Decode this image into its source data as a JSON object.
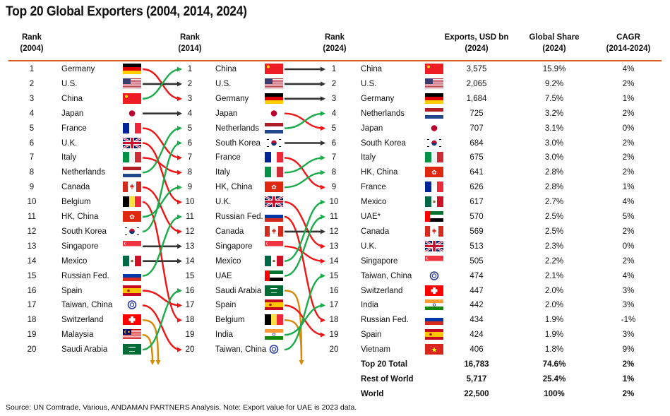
{
  "title": "Top 20 Global Exporters (2004, 2014, 2024)",
  "headers": {
    "rank2004": [
      "Rank",
      "(2004)"
    ],
    "rank2014": [
      "Rank",
      "(2014)"
    ],
    "rank2024": [
      "Rank",
      "(2024)"
    ],
    "exports": [
      "Exports, USD bn",
      "(2024)"
    ],
    "share": [
      "Global Share",
      "(2024)"
    ],
    "cagr": [
      "CAGR",
      "(2014-2024)"
    ]
  },
  "colors": {
    "accent_rule": "#d9601a",
    "up": "#1aab4a",
    "down": "#f01414",
    "same": "#333333",
    "exit": "#d68a0a"
  },
  "chart_data": {
    "type": "table",
    "title": "Top 20 Global Exporters (2004, 2014, 2024)",
    "ranks": [
      "1",
      "2",
      "3",
      "4",
      "5",
      "6",
      "7",
      "8",
      "9",
      "10",
      "11",
      "12",
      "13",
      "14",
      "15",
      "16",
      "17",
      "18",
      "19",
      "20"
    ],
    "rank_2004": [
      {
        "name": "Germany",
        "flag": "de"
      },
      {
        "name": "U.S.",
        "flag": "us"
      },
      {
        "name": "China",
        "flag": "cn"
      },
      {
        "name": "Japan",
        "flag": "jp"
      },
      {
        "name": "France",
        "flag": "fr"
      },
      {
        "name": "U.K.",
        "flag": "gb"
      },
      {
        "name": "Italy",
        "flag": "it"
      },
      {
        "name": "Netherlands",
        "flag": "nl"
      },
      {
        "name": "Canada",
        "flag": "ca"
      },
      {
        "name": "Belgium",
        "flag": "be"
      },
      {
        "name": "HK, China",
        "flag": "hk"
      },
      {
        "name": "South Korea",
        "flag": "kr"
      },
      {
        "name": "Singapore",
        "flag": "sg"
      },
      {
        "name": "Mexico",
        "flag": "mx"
      },
      {
        "name": "Russian Fed.",
        "flag": "ru"
      },
      {
        "name": "Spain",
        "flag": "es"
      },
      {
        "name": "Taiwan, China",
        "flag": "tw"
      },
      {
        "name": "Switzerland",
        "flag": "ch"
      },
      {
        "name": "Malaysia",
        "flag": "my"
      },
      {
        "name": "Saudi Arabia",
        "flag": "sa"
      }
    ],
    "rank_2014": [
      {
        "name": "China",
        "flag": "cn"
      },
      {
        "name": "U.S.",
        "flag": "us"
      },
      {
        "name": "Germany",
        "flag": "de"
      },
      {
        "name": "Japan",
        "flag": "jp"
      },
      {
        "name": "Netherlands",
        "flag": "nl"
      },
      {
        "name": "South Korea",
        "flag": "kr"
      },
      {
        "name": "France",
        "flag": "fr"
      },
      {
        "name": "Italy",
        "flag": "it"
      },
      {
        "name": "HK, China",
        "flag": "hk"
      },
      {
        "name": "U.K.",
        "flag": "gb"
      },
      {
        "name": "Russian Fed.",
        "flag": "ru"
      },
      {
        "name": "Canada",
        "flag": "ca"
      },
      {
        "name": "Singapore",
        "flag": "sg"
      },
      {
        "name": "Mexico",
        "flag": "mx"
      },
      {
        "name": "UAE",
        "flag": "ae"
      },
      {
        "name": "Saudi Arabia",
        "flag": "sa"
      },
      {
        "name": "Spain",
        "flag": "es"
      },
      {
        "name": "Belgium",
        "flag": "be"
      },
      {
        "name": "India",
        "flag": "in"
      },
      {
        "name": "Taiwan, China",
        "flag": "tw"
      }
    ],
    "rank_2024": [
      {
        "name": "China",
        "flag": "cn",
        "exports": "3,575",
        "share": "15.9%",
        "cagr": "4%"
      },
      {
        "name": "U.S.",
        "flag": "us",
        "exports": "2,065",
        "share": "9.2%",
        "cagr": "2%"
      },
      {
        "name": "Germany",
        "flag": "de",
        "exports": "1,684",
        "share": "7.5%",
        "cagr": "1%"
      },
      {
        "name": "Netherlands",
        "flag": "nl",
        "exports": "725",
        "share": "3.2%",
        "cagr": "2%"
      },
      {
        "name": "Japan",
        "flag": "jp",
        "exports": "707",
        "share": "3.1%",
        "cagr": "0%"
      },
      {
        "name": "South Korea",
        "flag": "kr",
        "exports": "684",
        "share": "3.0%",
        "cagr": "2%"
      },
      {
        "name": "Italy",
        "flag": "it",
        "exports": "675",
        "share": "3.0%",
        "cagr": "2%"
      },
      {
        "name": "HK, China",
        "flag": "hk",
        "exports": "641",
        "share": "2.8%",
        "cagr": "2%"
      },
      {
        "name": "France",
        "flag": "fr",
        "exports": "626",
        "share": "2.8%",
        "cagr": "1%"
      },
      {
        "name": "Mexico",
        "flag": "mx",
        "exports": "617",
        "share": "2.7%",
        "cagr": "4%"
      },
      {
        "name": "UAE*",
        "flag": "ae",
        "exports": "570",
        "share": "2.5%",
        "cagr": "5%"
      },
      {
        "name": "Canada",
        "flag": "ca",
        "exports": "569",
        "share": "2.5%",
        "cagr": "2%"
      },
      {
        "name": "U.K.",
        "flag": "gb",
        "exports": "513",
        "share": "2.3%",
        "cagr": "0%"
      },
      {
        "name": "Singapore",
        "flag": "sg",
        "exports": "505",
        "share": "2.2%",
        "cagr": "2%"
      },
      {
        "name": "Taiwan, China",
        "flag": "tw",
        "exports": "474",
        "share": "2.1%",
        "cagr": "4%"
      },
      {
        "name": "Switzerland",
        "flag": "ch",
        "exports": "447",
        "share": "2.0%",
        "cagr": "3%"
      },
      {
        "name": "India",
        "flag": "in",
        "exports": "442",
        "share": "2.0%",
        "cagr": "3%"
      },
      {
        "name": "Russian Fed.",
        "flag": "ru",
        "exports": "434",
        "share": "1.9%",
        "cagr": "-1%"
      },
      {
        "name": "Spain",
        "flag": "es",
        "exports": "424",
        "share": "1.9%",
        "cagr": "3%"
      },
      {
        "name": "Vietnam",
        "flag": "vn",
        "exports": "406",
        "share": "1.8%",
        "cagr": "9%"
      }
    ],
    "totals": [
      {
        "label": "Top 20 Total",
        "exports": "16,783",
        "share": "74.6%",
        "cagr": "2%"
      },
      {
        "label": "Rest of World",
        "exports": "5,717",
        "share": "25.4%",
        "cagr": "1%"
      },
      {
        "label": "World",
        "exports": "22,500",
        "share": "100%",
        "cagr": "2%"
      }
    ],
    "flows_2004_to_2014": [
      {
        "from": 1,
        "to": 3,
        "dir": "down"
      },
      {
        "from": 2,
        "to": 2,
        "dir": "same"
      },
      {
        "from": 3,
        "to": 1,
        "dir": "up"
      },
      {
        "from": 4,
        "to": 4,
        "dir": "same"
      },
      {
        "from": 5,
        "to": 7,
        "dir": "down"
      },
      {
        "from": 6,
        "to": 10,
        "dir": "down"
      },
      {
        "from": 7,
        "to": 8,
        "dir": "down"
      },
      {
        "from": 8,
        "to": 5,
        "dir": "up"
      },
      {
        "from": 9,
        "to": 12,
        "dir": "down"
      },
      {
        "from": 10,
        "to": 18,
        "dir": "down"
      },
      {
        "from": 11,
        "to": 9,
        "dir": "up"
      },
      {
        "from": 12,
        "to": 6,
        "dir": "up"
      },
      {
        "from": 13,
        "to": 13,
        "dir": "same"
      },
      {
        "from": 14,
        "to": 14,
        "dir": "same"
      },
      {
        "from": 15,
        "to": 11,
        "dir": "up"
      },
      {
        "from": 16,
        "to": 17,
        "dir": "down"
      },
      {
        "from": 17,
        "to": 20,
        "dir": "down"
      },
      {
        "from": 18,
        "to": null,
        "dir": "exit"
      },
      {
        "from": 19,
        "to": null,
        "dir": "exit"
      },
      {
        "from": 20,
        "to": 16,
        "dir": "up"
      }
    ],
    "flows_2014_to_2024": [
      {
        "from": 1,
        "to": 1,
        "dir": "same"
      },
      {
        "from": 2,
        "to": 2,
        "dir": "same"
      },
      {
        "from": 3,
        "to": 3,
        "dir": "same"
      },
      {
        "from": 4,
        "to": 5,
        "dir": "down"
      },
      {
        "from": 5,
        "to": 4,
        "dir": "up"
      },
      {
        "from": 6,
        "to": 6,
        "dir": "same"
      },
      {
        "from": 7,
        "to": 9,
        "dir": "down"
      },
      {
        "from": 8,
        "to": 7,
        "dir": "up"
      },
      {
        "from": 9,
        "to": 8,
        "dir": "up"
      },
      {
        "from": 10,
        "to": 13,
        "dir": "down"
      },
      {
        "from": 11,
        "to": 18,
        "dir": "down"
      },
      {
        "from": 12,
        "to": 12,
        "dir": "same"
      },
      {
        "from": 13,
        "to": 14,
        "dir": "down"
      },
      {
        "from": 14,
        "to": 10,
        "dir": "up"
      },
      {
        "from": 15,
        "to": 11,
        "dir": "up"
      },
      {
        "from": 16,
        "to": null,
        "dir": "exit"
      },
      {
        "from": 17,
        "to": 19,
        "dir": "down"
      },
      {
        "from": 18,
        "to": null,
        "dir": "exit"
      },
      {
        "from": 19,
        "to": 17,
        "dir": "up"
      },
      {
        "from": 20,
        "to": 15,
        "dir": "up"
      }
    ]
  },
  "source": "Source: UN Comtrade, Various, ANDAMAN PARTNERS Analysis. Note: Export value for UAE is 2023 data."
}
